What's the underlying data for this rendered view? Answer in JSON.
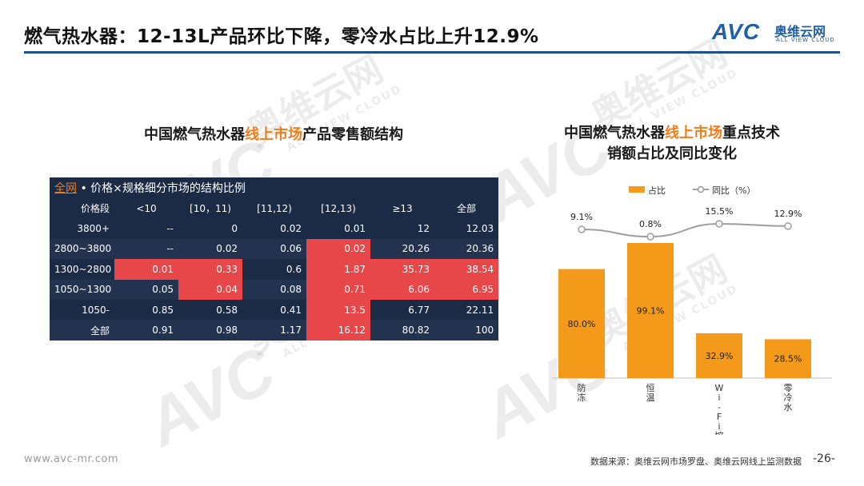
{
  "header": {
    "title": "燃气热水器：12-13L产品环比下降，零冷水占比上升12.9%",
    "logo_mark": "AVC",
    "logo_cn": "奥维云网",
    "logo_en": "ALL VIEW CLOUD"
  },
  "colors": {
    "accent": "#f07d1a",
    "table_dark": "#1b2a45",
    "table_red": "#e8474a",
    "rule_blue": "#1f4e8c",
    "line_gray": "#9e9e9e"
  },
  "left": {
    "title_pre": "中国燃气热水器",
    "title_hl": "线上市场",
    "title_post": "产品零售额结构",
    "table": {
      "caption_link": "全网",
      "caption_text": " • 价格×规格细分市场的结构比例",
      "headers": [
        "价格段",
        "<10",
        "[10，11)",
        "[11,12)",
        "[12,13)",
        "≥13",
        "全部"
      ],
      "rows": [
        [
          "3800+",
          "--",
          "0",
          "0.02",
          "0.01",
          "12",
          "12.03"
        ],
        [
          "2800~3800",
          "--",
          "0.02",
          "0.06",
          "0.02",
          "20.26",
          "20.36"
        ],
        [
          "1300~2800",
          "0.01",
          "0.33",
          "0.6",
          "1.87",
          "35.73",
          "38.54"
        ],
        [
          "1050~1300",
          "0.05",
          "0.04",
          "0.08",
          "0.71",
          "6.06",
          "6.95"
        ],
        [
          "1050-",
          "0.85",
          "0.58",
          "0.41",
          "13.5",
          "6.77",
          "22.11"
        ],
        [
          "全部",
          "0.91",
          "0.98",
          "1.17",
          "16.12",
          "80.82",
          "100"
        ]
      ]
    }
  },
  "right": {
    "title_pre": "中国燃气热水器",
    "title_hl": "线上市场",
    "title_post": "重点技术",
    "title_line2": "销额占比及同比变化"
  },
  "chart_data": {
    "type": "bar",
    "categories": [
      "防冻",
      "恒温",
      "Wi-Fi控制",
      "零冷水"
    ],
    "series": [
      {
        "name": "占比",
        "type": "bar",
        "values": [
          80.0,
          99.1,
          32.9,
          28.5
        ],
        "labels": [
          "80.0%",
          "99.1%",
          "32.9%",
          "28.5%"
        ],
        "color": "#f49a1a"
      },
      {
        "name": "同比（%）",
        "type": "line",
        "values": [
          9.1,
          0.8,
          15.5,
          12.9
        ],
        "labels": [
          "9.1%",
          "0.8%",
          "15.5%",
          "12.9%"
        ],
        "color": "#9e9e9e"
      }
    ],
    "legend": "top-center",
    "grid": false
  },
  "footer": {
    "url": "www.avc-mr.com",
    "source": "数据来源：奥维云网市场罗盘、奥维云网线上监测数据",
    "page": "-26-"
  }
}
